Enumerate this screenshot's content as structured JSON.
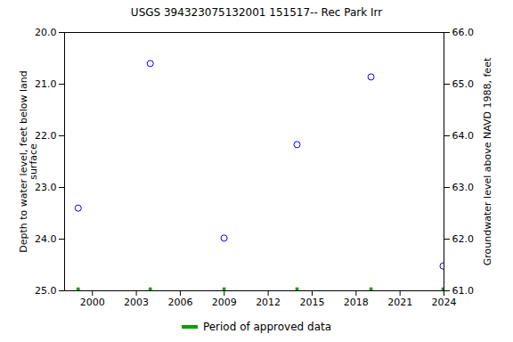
{
  "chart_data": {
    "type": "scatter",
    "title": "USGS 394323075132001 151517-- Rec Park Irr",
    "ylabel": "Depth to water level, feet below land\nsurface",
    "y2label": "Groundwater level above NAVD 1988, feet",
    "x": [
      1999.03,
      2003.95,
      2008.99,
      2013.97,
      2019.02,
      2023.94
    ],
    "values": [
      23.4,
      20.6,
      23.98,
      22.17,
      20.86,
      24.52
    ],
    "color": "#0000ff",
    "marker": "circle",
    "approved": {
      "name": "Period of approved data",
      "color": "#00a000",
      "x": [
        1999.03,
        2003.95,
        2008.99,
        2013.97,
        2019.02,
        2023.94
      ]
    },
    "xlim": [
      1998.1,
      2024.0
    ],
    "xticks": [
      2000,
      2003,
      2006,
      2009,
      2012,
      2015,
      2018,
      2021,
      2024
    ],
    "ylim": [
      25.0,
      20.0
    ],
    "yticks": [
      {
        "value": 20,
        "label": "20.0"
      },
      {
        "value": 21,
        "label": "21.0"
      },
      {
        "value": 22,
        "label": "22.0"
      },
      {
        "value": 23,
        "label": "23.0"
      },
      {
        "value": 24,
        "label": "24.0"
      },
      {
        "value": 25,
        "label": "25.0"
      }
    ],
    "y2lim": [
      61.0,
      66.0
    ],
    "y2ticks": [
      {
        "value": 61,
        "label": "61.0"
      },
      {
        "value": 62,
        "label": "62.0"
      },
      {
        "value": 63,
        "label": "63.0"
      },
      {
        "value": 64,
        "label": "64.0"
      },
      {
        "value": 65,
        "label": "65.0"
      },
      {
        "value": 66,
        "label": "66.0"
      }
    ],
    "grid": false
  }
}
